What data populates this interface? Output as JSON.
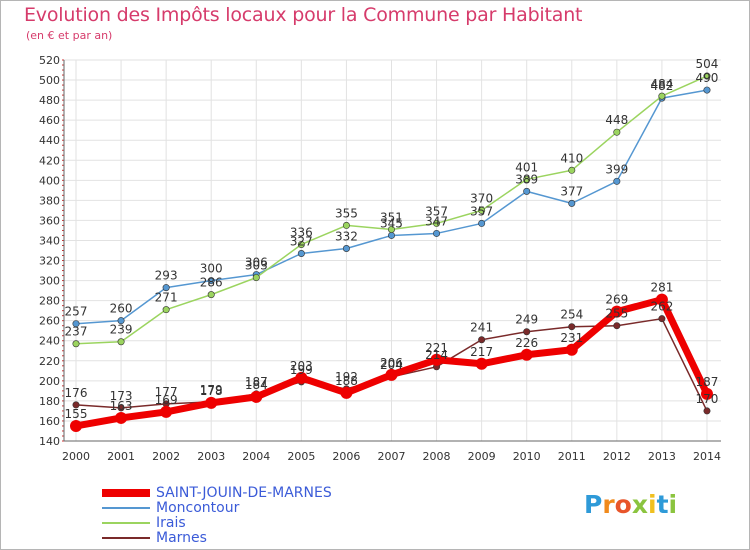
{
  "header": {
    "title": "Evolution des Impôts locaux pour la Commune par Habitant",
    "subtitle": "(en € et par an)"
  },
  "logo": {
    "letters": [
      "P",
      "r",
      "o",
      "x",
      "i",
      "t",
      "i"
    ],
    "colors": [
      "#2e9ad8",
      "#f08a1c",
      "#e8552a",
      "#8bc43f",
      "#f0c020",
      "#2e9ad8",
      "#8bc43f"
    ]
  },
  "chart_data": {
    "type": "line",
    "x": [
      "2000",
      "2001",
      "2002",
      "2003",
      "2004",
      "2005",
      "2006",
      "2007",
      "2008",
      "2009",
      "2010",
      "2011",
      "2012",
      "2013",
      "2014"
    ],
    "yticks": [
      140,
      160,
      180,
      200,
      220,
      240,
      260,
      280,
      300,
      320,
      340,
      360,
      380,
      400,
      420,
      440,
      460,
      480,
      500,
      520
    ],
    "ylim": [
      140,
      520
    ],
    "grid": true,
    "legend_position": "bottom-left",
    "series": [
      {
        "name": "SAINT-JOUIN-DE-MARNES",
        "color": "#ee0000",
        "values": [
          155,
          163,
          169,
          178,
          184,
          203,
          188,
          206,
          221,
          217,
          226,
          231,
          269,
          281,
          187
        ],
        "labels": [
          "155",
          "163",
          "169",
          "178",
          "184",
          "203",
          "188",
          "206",
          "221",
          "217",
          "226",
          "231",
          "269",
          "281",
          "187"
        ]
      },
      {
        "name": "Moncontour",
        "color": "#5597d1",
        "values": [
          257,
          260,
          293,
          300,
          306,
          327,
          332,
          345,
          347,
          357,
          389,
          377,
          399,
          482,
          490
        ],
        "labels": [
          "257",
          "260",
          "293",
          "300",
          "306",
          "327",
          "332",
          "345",
          "347",
          "357",
          "389",
          "377",
          "399",
          "482",
          "490"
        ]
      },
      {
        "name": "Irais",
        "color": "#9bd45f",
        "values": [
          237,
          239,
          271,
          286,
          303,
          336,
          355,
          351,
          357,
          370,
          401,
          410,
          448,
          484,
          504
        ],
        "labels": [
          "237",
          "239",
          "271",
          "286",
          "303",
          "336",
          "355",
          "351",
          "357",
          "370",
          "401",
          "410",
          "448",
          "484",
          "504"
        ]
      },
      {
        "name": "Marnes",
        "color": "#7a2a2a",
        "values": [
          176,
          173,
          177,
          179,
          187,
          199,
          192,
          204,
          214,
          241,
          249,
          254,
          255,
          262,
          170
        ],
        "labels": [
          "176",
          "173",
          "177",
          "179",
          "187",
          "199",
          "192",
          "204",
          "214",
          "241",
          "249",
          "254",
          "255",
          "262",
          "170"
        ]
      }
    ]
  }
}
